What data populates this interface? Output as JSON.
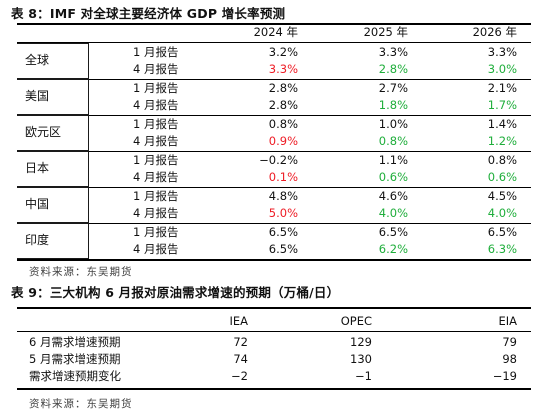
{
  "table8": {
    "title": "表 8：IMF 对全球主要经济体 GDP 增长率预测",
    "years": [
      "2024 年",
      "2025 年",
      "2026 年"
    ],
    "regions": [
      {
        "name": "全球",
        "rows": [
          {
            "label": "1 月报告",
            "vals": [
              "3.2%",
              "3.3%",
              "3.3%"
            ],
            "colors": [
              "black",
              "black",
              "black"
            ]
          },
          {
            "label": "4 月报告",
            "vals": [
              "3.3%",
              "2.8%",
              "3.0%"
            ],
            "colors": [
              "red",
              "green",
              "green"
            ]
          }
        ]
      },
      {
        "name": "美国",
        "rows": [
          {
            "label": "1 月报告",
            "vals": [
              "2.8%",
              "2.7%",
              "2.1%"
            ],
            "colors": [
              "black",
              "black",
              "black"
            ]
          },
          {
            "label": "4 月报告",
            "vals": [
              "2.8%",
              "1.8%",
              "1.7%"
            ],
            "colors": [
              "black",
              "green",
              "green"
            ]
          }
        ]
      },
      {
        "name": "欧元区",
        "rows": [
          {
            "label": "1 月报告",
            "vals": [
              "0.8%",
              "1.0%",
              "1.4%"
            ],
            "colors": [
              "black",
              "black",
              "black"
            ]
          },
          {
            "label": "4 月报告",
            "vals": [
              "0.9%",
              "0.8%",
              "1.2%"
            ],
            "colors": [
              "red",
              "green",
              "green"
            ]
          }
        ]
      },
      {
        "name": "日本",
        "rows": [
          {
            "label": "1 月报告",
            "vals": [
              "−0.2%",
              "1.1%",
              "0.8%"
            ],
            "colors": [
              "black",
              "black",
              "black"
            ]
          },
          {
            "label": "4 月报告",
            "vals": [
              "0.1%",
              "0.6%",
              "0.6%"
            ],
            "colors": [
              "red",
              "green",
              "green"
            ]
          }
        ]
      },
      {
        "name": "中国",
        "rows": [
          {
            "label": "1 月报告",
            "vals": [
              "4.8%",
              "4.6%",
              "4.5%"
            ],
            "colors": [
              "black",
              "black",
              "black"
            ]
          },
          {
            "label": "4 月报告",
            "vals": [
              "5.0%",
              "4.0%",
              "4.0%"
            ],
            "colors": [
              "red",
              "green",
              "green"
            ]
          }
        ]
      },
      {
        "name": "印度",
        "rows": [
          {
            "label": "1 月报告",
            "vals": [
              "6.5%",
              "6.5%",
              "6.5%"
            ],
            "colors": [
              "black",
              "black",
              "black"
            ]
          },
          {
            "label": "4 月报告",
            "vals": [
              "6.5%",
              "6.2%",
              "6.3%"
            ],
            "colors": [
              "black",
              "green",
              "green"
            ]
          }
        ]
      }
    ],
    "source": "资料来源：东吴期货"
  },
  "table9": {
    "title": "表 9：三大机构 6 月报对原油需求增速的预期（万桶/日）",
    "columns": [
      "IEA",
      "OPEC",
      "EIA"
    ],
    "rows": [
      {
        "label": "6 月需求增速预期",
        "vals": [
          "72",
          "129",
          "79"
        ]
      },
      {
        "label": "5 月需求增速预期",
        "vals": [
          "74",
          "130",
          "98"
        ]
      },
      {
        "label": "需求增速预期变化",
        "vals": [
          "−2",
          "−1",
          "−19"
        ]
      }
    ],
    "source": "资料来源：东吴期货"
  },
  "colors": {
    "red": "#ee1c25",
    "green": "#1fae3b",
    "black": "#111111"
  }
}
